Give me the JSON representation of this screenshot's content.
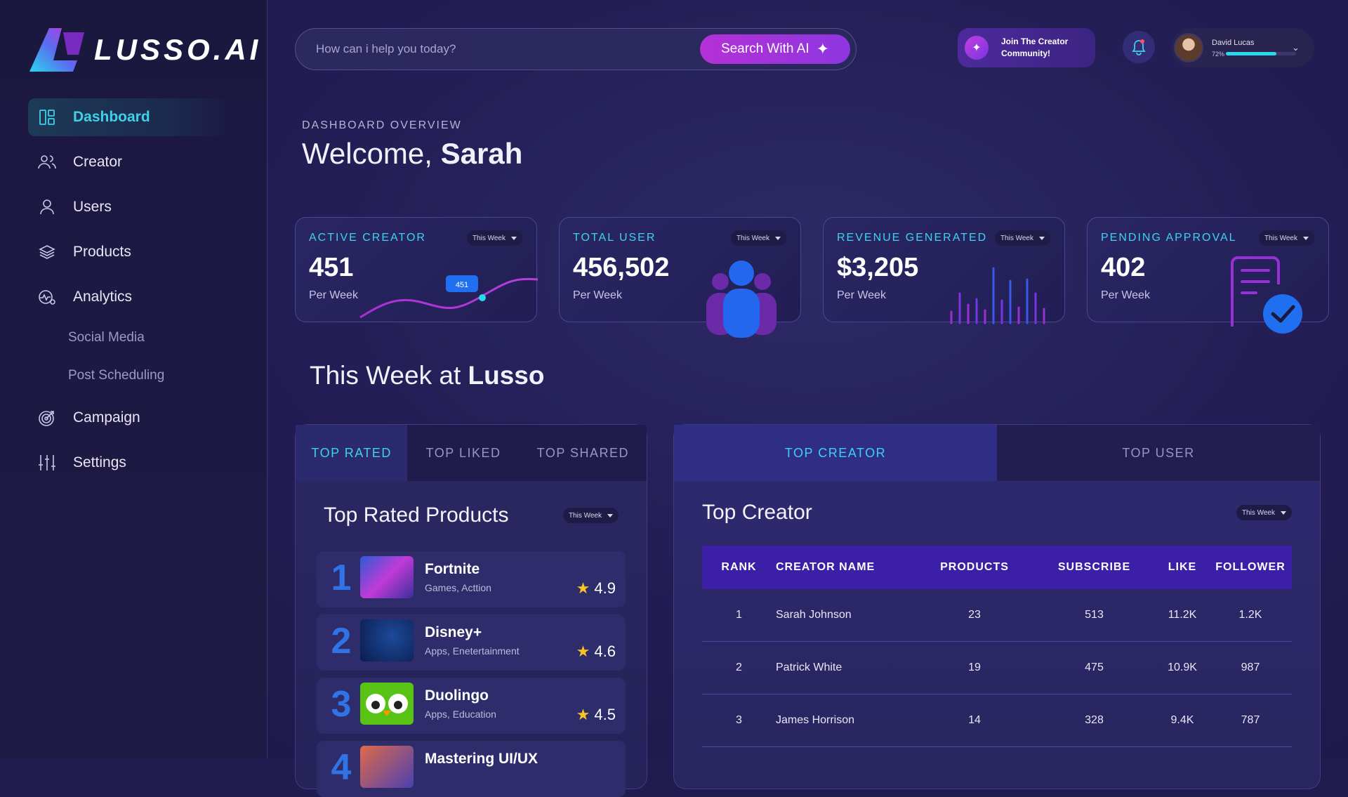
{
  "brand": {
    "name": "LUSSO.AI"
  },
  "sidebar": {
    "items": [
      {
        "label": "Dashboard",
        "icon": "dashboard-icon",
        "active": true
      },
      {
        "label": "Creator",
        "icon": "users-group-icon"
      },
      {
        "label": "Users",
        "icon": "user-icon"
      },
      {
        "label": "Products",
        "icon": "layers-icon"
      },
      {
        "label": "Analytics",
        "icon": "analytics-icon"
      }
    ],
    "subitems": [
      "Social Media",
      "Post Scheduling"
    ],
    "bottom_items": [
      {
        "label": "Campaign",
        "icon": "target-icon"
      },
      {
        "label": "Settings",
        "icon": "sliders-icon"
      }
    ]
  },
  "search": {
    "placeholder": "How can i help you today?",
    "button_label": "Search With AI"
  },
  "community": {
    "label": "Join The Creator Community!"
  },
  "profile": {
    "name": "David Lucas",
    "progress_label": "72%",
    "progress": 0.72
  },
  "header": {
    "overline": "DASHBOARD OVERVIEW",
    "welcome": "Welcome,",
    "user": "Sarah"
  },
  "stats": [
    {
      "title": "ACTIVE CREATOR",
      "value": "451",
      "sub": "Per Week",
      "period": "This Week",
      "chip": "451"
    },
    {
      "title": "TOTAL USER",
      "value": "456,502",
      "sub": "Per Week",
      "period": "This Week"
    },
    {
      "title": "REVENUE GENERATED",
      "value": "$3,205",
      "sub": "Per Week",
      "period": "This Week"
    },
    {
      "title": "PENDING APPROVAL",
      "value": "402",
      "sub": "Per Week",
      "period": "This Week"
    }
  ],
  "section": {
    "title": "This Week at",
    "brand": "Lusso"
  },
  "left_panel": {
    "tabs": [
      "TOP RATED",
      "TOP LIKED",
      "TOP SHARED"
    ],
    "title": "Top Rated Products",
    "period": "This Week",
    "products": [
      {
        "rank": "1",
        "name": "Fortnite",
        "category": "Games, Acttion",
        "rating": "4.9"
      },
      {
        "rank": "2",
        "name": "Disney+",
        "category": "Apps, Enetertainment",
        "rating": "4.6"
      },
      {
        "rank": "3",
        "name": "Duolingo",
        "category": "Apps, Education",
        "rating": "4.5"
      },
      {
        "rank": "4",
        "name": "Mastering UI/UX",
        "category": "",
        "rating": ""
      }
    ]
  },
  "right_panel": {
    "tabs": [
      "TOP CREATOR",
      "TOP USER"
    ],
    "title": "Top Creator",
    "period": "This Week",
    "columns": [
      "RANK",
      "CREATOR NAME",
      "PRODUCTS",
      "SUBSCRIBE",
      "LIKE",
      "FOLLOWER"
    ],
    "rows": [
      [
        "1",
        "Sarah Johnson",
        "23",
        "513",
        "11.2K",
        "1.2K"
      ],
      [
        "2",
        "Patrick White",
        "19",
        "475",
        "10.9K",
        "987"
      ],
      [
        "3",
        "James Horrison",
        "14",
        "328",
        "9.4K",
        "787"
      ]
    ]
  },
  "colors": {
    "accent": "#3fd0ea",
    "purple": "#b431d6",
    "rank_blue": "#2f73e6",
    "star": "#f7c325"
  }
}
